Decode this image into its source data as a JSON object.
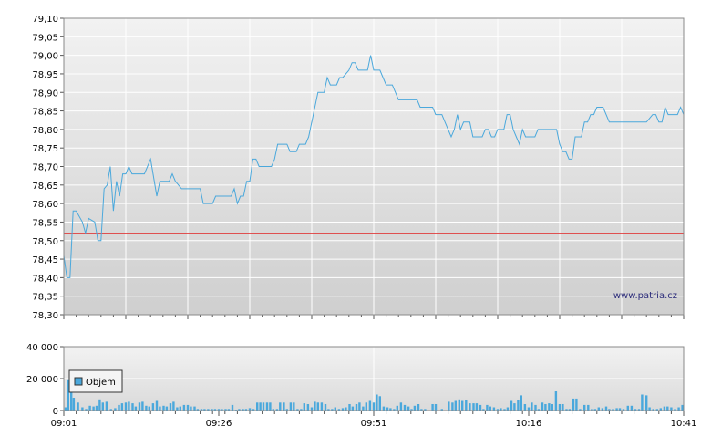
{
  "watermark": "www.patria.cz",
  "colors": {
    "price_line": "#4aa8dc",
    "reference_line": "#e03c3c",
    "volume_bar": "#4aa8dc",
    "grid": "#ffffff",
    "plot_top": "#f2f2f2",
    "plot_bottom": "#cfcfcf"
  },
  "legend": {
    "label": "Objem",
    "placement": "top-left"
  },
  "chart_data": [
    {
      "type": "line",
      "name": "price",
      "reference_line": 78.52,
      "ylim": [
        78.3,
        79.1
      ],
      "y_ticks": [
        "79,10",
        "79,05",
        "79,00",
        "78,95",
        "78,90",
        "78,85",
        "78,80",
        "78,75",
        "78,70",
        "78,65",
        "78,60",
        "78,55",
        "78,50",
        "78,45",
        "78,40",
        "78,35",
        "78,30"
      ],
      "x_tick_labels": [
        "09:01",
        "09:26",
        "09:51",
        "10:16",
        "10:41"
      ],
      "xlim_minutes": [
        0,
        100
      ],
      "grid": true,
      "points": [
        [
          0,
          78.46
        ],
        [
          0.5,
          78.4
        ],
        [
          1,
          78.4
        ],
        [
          1.5,
          78.58
        ],
        [
          2,
          78.58
        ],
        [
          3,
          78.55
        ],
        [
          3.5,
          78.52
        ],
        [
          4,
          78.56
        ],
        [
          5,
          78.55
        ],
        [
          5.5,
          78.5
        ],
        [
          6,
          78.5
        ],
        [
          6.5,
          78.64
        ],
        [
          7,
          78.65
        ],
        [
          7.5,
          78.7
        ],
        [
          8,
          78.58
        ],
        [
          8.5,
          78.66
        ],
        [
          9,
          78.62
        ],
        [
          9.5,
          78.68
        ],
        [
          10,
          78.68
        ],
        [
          10.5,
          78.7
        ],
        [
          11,
          78.68
        ],
        [
          12,
          78.68
        ],
        [
          13,
          78.68
        ],
        [
          14,
          78.72
        ],
        [
          15,
          78.62
        ],
        [
          15.5,
          78.66
        ],
        [
          16,
          78.66
        ],
        [
          17,
          78.66
        ],
        [
          17.5,
          78.68
        ],
        [
          18,
          78.66
        ],
        [
          19,
          78.64
        ],
        [
          20,
          78.64
        ],
        [
          21,
          78.64
        ],
        [
          22,
          78.64
        ],
        [
          22.5,
          78.6
        ],
        [
          23,
          78.6
        ],
        [
          24,
          78.6
        ],
        [
          24.5,
          78.62
        ],
        [
          25,
          78.62
        ],
        [
          26,
          78.62
        ],
        [
          27,
          78.62
        ],
        [
          27.5,
          78.64
        ],
        [
          28,
          78.6
        ],
        [
          28.5,
          78.62
        ],
        [
          29,
          78.62
        ],
        [
          29.5,
          78.66
        ],
        [
          30,
          78.66
        ],
        [
          30.5,
          78.72
        ],
        [
          31,
          78.72
        ],
        [
          31.5,
          78.7
        ],
        [
          32,
          78.7
        ],
        [
          33,
          78.7
        ],
        [
          33.5,
          78.7
        ],
        [
          34,
          78.72
        ],
        [
          34.5,
          78.76
        ],
        [
          35,
          78.76
        ],
        [
          36,
          78.76
        ],
        [
          36.5,
          78.74
        ],
        [
          37,
          78.74
        ],
        [
          37.5,
          78.74
        ],
        [
          38,
          78.76
        ],
        [
          39,
          78.76
        ],
        [
          39.5,
          78.78
        ],
        [
          40,
          78.82
        ],
        [
          41,
          78.9
        ],
        [
          42,
          78.9
        ],
        [
          42.5,
          78.94
        ],
        [
          43,
          78.92
        ],
        [
          44,
          78.92
        ],
        [
          44.5,
          78.94
        ],
        [
          45,
          78.94
        ],
        [
          46,
          78.96
        ],
        [
          46.5,
          78.98
        ],
        [
          47,
          78.98
        ],
        [
          47.5,
          78.96
        ],
        [
          48,
          78.96
        ],
        [
          49,
          78.96
        ],
        [
          49.5,
          79.0
        ],
        [
          50,
          78.96
        ],
        [
          51,
          78.96
        ],
        [
          51.5,
          78.94
        ],
        [
          52,
          78.92
        ],
        [
          53,
          78.92
        ],
        [
          53.5,
          78.9
        ],
        [
          54,
          78.88
        ],
        [
          55,
          78.88
        ],
        [
          56,
          78.88
        ],
        [
          57,
          78.88
        ],
        [
          57.5,
          78.86
        ],
        [
          58,
          78.86
        ],
        [
          59,
          78.86
        ],
        [
          59.5,
          78.86
        ],
        [
          60,
          78.84
        ],
        [
          61,
          78.84
        ],
        [
          61.5,
          78.82
        ],
        [
          62,
          78.8
        ],
        [
          62.5,
          78.78
        ],
        [
          63,
          78.8
        ],
        [
          63.5,
          78.84
        ],
        [
          64,
          78.8
        ],
        [
          64.5,
          78.82
        ],
        [
          65,
          78.82
        ],
        [
          65.5,
          78.82
        ],
        [
          66,
          78.78
        ],
        [
          67,
          78.78
        ],
        [
          67.5,
          78.78
        ],
        [
          68,
          78.8
        ],
        [
          68.5,
          78.8
        ],
        [
          69,
          78.78
        ],
        [
          69.5,
          78.78
        ],
        [
          70,
          78.8
        ],
        [
          70.5,
          78.8
        ],
        [
          71,
          78.8
        ],
        [
          71.5,
          78.84
        ],
        [
          72,
          78.84
        ],
        [
          72.5,
          78.8
        ],
        [
          73,
          78.78
        ],
        [
          73.5,
          78.76
        ],
        [
          74,
          78.8
        ],
        [
          74.5,
          78.78
        ],
        [
          75,
          78.78
        ],
        [
          76,
          78.78
        ],
        [
          76.5,
          78.8
        ],
        [
          77,
          78.8
        ],
        [
          78,
          78.8
        ],
        [
          79,
          78.8
        ],
        [
          79.5,
          78.8
        ],
        [
          80,
          78.76
        ],
        [
          80.5,
          78.74
        ],
        [
          81,
          78.74
        ],
        [
          81.5,
          78.72
        ],
        [
          82,
          78.72
        ],
        [
          82.5,
          78.78
        ],
        [
          83,
          78.78
        ],
        [
          83.5,
          78.78
        ],
        [
          84,
          78.82
        ],
        [
          84.5,
          78.82
        ],
        [
          85,
          78.84
        ],
        [
          85.5,
          78.84
        ],
        [
          86,
          78.86
        ],
        [
          87,
          78.86
        ],
        [
          88,
          78.82
        ],
        [
          89,
          78.82
        ],
        [
          90,
          78.82
        ],
        [
          91,
          78.82
        ],
        [
          92,
          78.82
        ],
        [
          93,
          78.82
        ],
        [
          94,
          78.82
        ],
        [
          95,
          78.84
        ],
        [
          95.5,
          78.84
        ],
        [
          96,
          78.82
        ],
        [
          96.5,
          78.82
        ],
        [
          97,
          78.86
        ],
        [
          97.5,
          78.84
        ],
        [
          98,
          78.84
        ],
        [
          99,
          78.84
        ],
        [
          99.5,
          78.86
        ],
        [
          100,
          78.84
        ]
      ]
    },
    {
      "type": "bar",
      "name": "Objem",
      "ylim": [
        0,
        40000
      ],
      "y_ticks": [
        "40 000",
        "20 000",
        "0"
      ],
      "x_tick_labels": [
        "09:01",
        "09:26",
        "09:51",
        "10:16",
        "10:41"
      ],
      "xlim_minutes": [
        0,
        100
      ],
      "grid": true,
      "bars": [
        [
          0.3,
          2000
        ],
        [
          0.7,
          19000
        ],
        [
          1.2,
          16000
        ],
        [
          1.6,
          8000
        ],
        [
          2.3,
          5000
        ],
        [
          3.0,
          2000
        ],
        [
          3.6,
          1000
        ],
        [
          4.2,
          3000
        ],
        [
          4.8,
          2500
        ],
        [
          5.3,
          3000
        ],
        [
          5.8,
          7000
        ],
        [
          6.3,
          5000
        ],
        [
          6.9,
          5500
        ],
        [
          7.6,
          1000
        ],
        [
          8.3,
          1500
        ],
        [
          8.9,
          3500
        ],
        [
          9.4,
          4500
        ],
        [
          10.0,
          5000
        ],
        [
          10.5,
          5500
        ],
        [
          11.1,
          4500
        ],
        [
          11.6,
          2500
        ],
        [
          12.2,
          5000
        ],
        [
          12.7,
          5500
        ],
        [
          13.3,
          3000
        ],
        [
          13.8,
          2500
        ],
        [
          14.4,
          4500
        ],
        [
          15.0,
          6000
        ],
        [
          15.5,
          2500
        ],
        [
          16.1,
          3000
        ],
        [
          16.6,
          2500
        ],
        [
          17.2,
          4500
        ],
        [
          17.7,
          5500
        ],
        [
          18.3,
          2000
        ],
        [
          18.8,
          2500
        ],
        [
          19.4,
          3500
        ],
        [
          20.0,
          3500
        ],
        [
          20.5,
          2500
        ],
        [
          21.1,
          2500
        ],
        [
          21.6,
          1000
        ],
        [
          22.2,
          1000
        ],
        [
          22.7,
          1000
        ],
        [
          23.3,
          1000
        ],
        [
          23.9,
          1000
        ],
        [
          24.4,
          1000
        ],
        [
          25.0,
          1000
        ],
        [
          25.5,
          1000
        ],
        [
          26.1,
          1000
        ],
        [
          26.6,
          1000
        ],
        [
          27.2,
          3500
        ],
        [
          27.8,
          500
        ],
        [
          28.3,
          1000
        ],
        [
          28.9,
          1000
        ],
        [
          29.4,
          1000
        ],
        [
          30.0,
          1500
        ],
        [
          30.6,
          1000
        ],
        [
          31.2,
          5000
        ],
        [
          31.7,
          5000
        ],
        [
          32.2,
          5000
        ],
        [
          32.8,
          5000
        ],
        [
          33.3,
          5000
        ],
        [
          33.8,
          1000
        ],
        [
          34.4,
          1000
        ],
        [
          34.9,
          5000
        ],
        [
          35.5,
          5000
        ],
        [
          36.0,
          1000
        ],
        [
          36.6,
          5000
        ],
        [
          37.1,
          5000
        ],
        [
          37.7,
          1000
        ],
        [
          38.3,
          1000
        ],
        [
          38.8,
          4500
        ],
        [
          39.4,
          4000
        ],
        [
          40.0,
          2000
        ],
        [
          40.5,
          5500
        ],
        [
          41.0,
          5000
        ],
        [
          41.6,
          5000
        ],
        [
          42.2,
          4000
        ],
        [
          42.7,
          1000
        ],
        [
          43.3,
          1000
        ],
        [
          43.8,
          2000
        ],
        [
          44.4,
          1000
        ],
        [
          45.0,
          1500
        ],
        [
          45.5,
          2000
        ],
        [
          46.1,
          4000
        ],
        [
          46.6,
          2500
        ],
        [
          47.2,
          4000
        ],
        [
          47.7,
          5000
        ],
        [
          48.3,
          2500
        ],
        [
          48.8,
          5000
        ],
        [
          49.4,
          6000
        ],
        [
          50.0,
          5000
        ],
        [
          50.5,
          10000
        ],
        [
          51.0,
          9000
        ],
        [
          51.6,
          2500
        ],
        [
          52.2,
          2000
        ],
        [
          52.7,
          1500
        ],
        [
          53.3,
          1000
        ],
        [
          53.8,
          3000
        ],
        [
          54.4,
          5000
        ],
        [
          55.0,
          3500
        ],
        [
          55.6,
          2500
        ],
        [
          56.1,
          1000
        ],
        [
          56.6,
          3000
        ],
        [
          57.2,
          4000
        ],
        [
          57.7,
          1000
        ],
        [
          58.3,
          1000
        ],
        [
          59.5,
          4000
        ],
        [
          60.0,
          4000
        ],
        [
          61.0,
          1000
        ],
        [
          62.1,
          5500
        ],
        [
          62.7,
          5000
        ],
        [
          63.2,
          6000
        ],
        [
          63.8,
          7000
        ],
        [
          64.3,
          6000
        ],
        [
          64.9,
          6500
        ],
        [
          65.5,
          4500
        ],
        [
          66.1,
          4500
        ],
        [
          66.6,
          4500
        ],
        [
          67.2,
          3500
        ],
        [
          67.7,
          1000
        ],
        [
          68.3,
          3500
        ],
        [
          68.8,
          2500
        ],
        [
          69.4,
          2000
        ],
        [
          70.0,
          1000
        ],
        [
          70.5,
          1500
        ],
        [
          71.1,
          1000
        ],
        [
          71.6,
          2000
        ],
        [
          72.2,
          6000
        ],
        [
          72.7,
          4500
        ],
        [
          73.3,
          6500
        ],
        [
          73.8,
          9500
        ],
        [
          74.4,
          4000
        ],
        [
          75.0,
          2000
        ],
        [
          75.5,
          5000
        ],
        [
          76.1,
          3500
        ],
        [
          76.6,
          1000
        ],
        [
          77.2,
          5000
        ],
        [
          77.7,
          4000
        ],
        [
          78.3,
          4500
        ],
        [
          78.8,
          4000
        ],
        [
          79.4,
          12000
        ],
        [
          80.0,
          4000
        ],
        [
          80.5,
          4000
        ],
        [
          81.1,
          1000
        ],
        [
          81.6,
          1000
        ],
        [
          82.2,
          7500
        ],
        [
          82.7,
          7500
        ],
        [
          83.3,
          1000
        ],
        [
          84.0,
          3500
        ],
        [
          84.6,
          3500
        ],
        [
          85.2,
          1000
        ],
        [
          85.7,
          1000
        ],
        [
          86.3,
          2000
        ],
        [
          86.9,
          1500
        ],
        [
          87.5,
          2500
        ],
        [
          88.0,
          1000
        ],
        [
          88.6,
          1000
        ],
        [
          89.2,
          1500
        ],
        [
          89.7,
          1500
        ],
        [
          90.3,
          1000
        ],
        [
          91.0,
          3000
        ],
        [
          91.6,
          3000
        ],
        [
          92.2,
          1000
        ],
        [
          92.8,
          1000
        ],
        [
          93.3,
          10000
        ],
        [
          94.0,
          9500
        ],
        [
          94.5,
          2000
        ],
        [
          95.1,
          1000
        ],
        [
          95.7,
          1000
        ],
        [
          96.3,
          1500
        ],
        [
          96.9,
          2500
        ],
        [
          97.4,
          2500
        ],
        [
          98.0,
          2000
        ],
        [
          98.6,
          1000
        ],
        [
          99.2,
          2000
        ],
        [
          99.8,
          3500
        ]
      ]
    }
  ]
}
